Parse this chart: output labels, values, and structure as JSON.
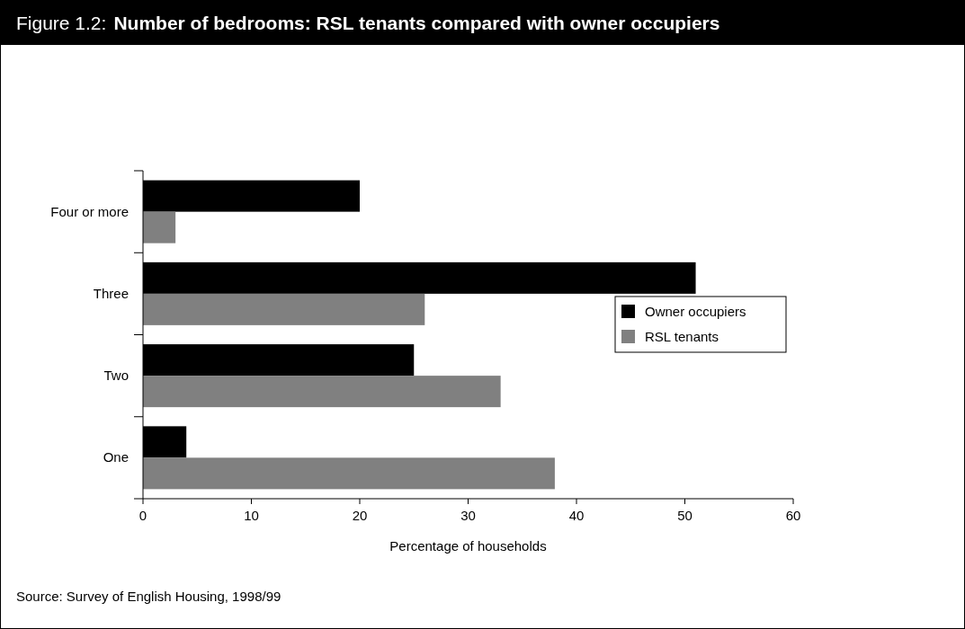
{
  "chart_data": {
    "type": "bar",
    "orientation": "horizontal",
    "title": "Figure 1.2: Number of bedrooms: RSL tenants compared with owner occupiers",
    "categories": [
      "Four or more",
      "Three",
      "Two",
      "One"
    ],
    "series": [
      {
        "name": "Owner occupiers",
        "color": "#000000",
        "values": [
          20,
          51,
          25,
          4
        ]
      },
      {
        "name": "RSL tenants",
        "color": "#808080",
        "values": [
          3,
          26,
          33,
          38
        ]
      }
    ],
    "xlim": [
      0,
      60
    ],
    "xticks": [
      0,
      10,
      20,
      30,
      40,
      50,
      60
    ],
    "xlabel": "Percentage of households",
    "legend": "right",
    "grid": false,
    "annotations": [
      "Source: Survey of English Housing, 1998/99"
    ]
  }
}
